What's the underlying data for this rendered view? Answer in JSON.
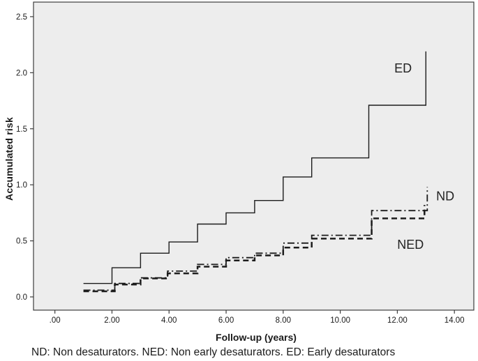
{
  "figure": {
    "caption": "ND: Non desaturators. NED: Non early desaturators. ED: Early desaturators"
  },
  "chart_data": {
    "type": "line",
    "variant": "step",
    "title": "",
    "xlabel": "Follow-up (years)",
    "ylabel": "Accumulated risk",
    "xlim": [
      -0.75,
      14.68
    ],
    "ylim": [
      -0.118,
      2.63
    ],
    "grid": false,
    "legend_position": "in-plot labels",
    "plot_background": "#ededed",
    "frame_color": "#3d3d3d",
    "line_color": "#1c1c1c",
    "xticks": {
      "values": [
        0,
        2,
        4,
        6,
        8,
        10,
        12,
        14
      ],
      "labels": [
        ".00",
        "2.00",
        "4.00",
        "6.00",
        "8.00",
        "10.00",
        "12.00",
        "14.00"
      ]
    },
    "yticks": {
      "values": [
        0.0,
        0.5,
        1.0,
        1.5,
        2.0,
        2.5
      ],
      "labels": [
        "0.0",
        "0.5",
        "1.0",
        "1.5",
        "2.0",
        "2.5"
      ]
    },
    "series": [
      {
        "name": "ED",
        "style": "solid",
        "width": 1.4,
        "points": [
          [
            1.0,
            0.12
          ],
          [
            2.0,
            0.12
          ],
          [
            2.0,
            0.26
          ],
          [
            3.0,
            0.26
          ],
          [
            3.0,
            0.39
          ],
          [
            4.0,
            0.39
          ],
          [
            4.0,
            0.49
          ],
          [
            5.0,
            0.49
          ],
          [
            5.0,
            0.65
          ],
          [
            6.0,
            0.65
          ],
          [
            6.0,
            0.75
          ],
          [
            7.0,
            0.75
          ],
          [
            7.0,
            0.86
          ],
          [
            8.0,
            0.86
          ],
          [
            8.0,
            1.07
          ],
          [
            9.0,
            1.07
          ],
          [
            9.0,
            1.24
          ],
          [
            11.0,
            1.24
          ],
          [
            11.0,
            1.71
          ],
          [
            13.0,
            1.71
          ],
          [
            13.0,
            2.19
          ]
        ]
      },
      {
        "name": "ND",
        "style": "dashdot",
        "width": 1.8,
        "points": [
          [
            1.0,
            0.06
          ],
          [
            2.1,
            0.06
          ],
          [
            2.1,
            0.12
          ],
          [
            3.0,
            0.12
          ],
          [
            3.0,
            0.17
          ],
          [
            3.95,
            0.17
          ],
          [
            3.95,
            0.23
          ],
          [
            5.0,
            0.23
          ],
          [
            5.0,
            0.29
          ],
          [
            6.0,
            0.29
          ],
          [
            6.0,
            0.35
          ],
          [
            7.0,
            0.35
          ],
          [
            7.0,
            0.39
          ],
          [
            8.0,
            0.39
          ],
          [
            8.0,
            0.48
          ],
          [
            9.0,
            0.48
          ],
          [
            9.0,
            0.55
          ],
          [
            11.1,
            0.55
          ],
          [
            11.1,
            0.77
          ],
          [
            13.05,
            0.77
          ],
          [
            13.05,
            0.98
          ]
        ]
      },
      {
        "name": "NED",
        "style": "dashed",
        "width": 2.5,
        "points": [
          [
            1.0,
            0.05
          ],
          [
            2.1,
            0.05
          ],
          [
            2.1,
            0.11
          ],
          [
            3.0,
            0.11
          ],
          [
            3.0,
            0.165
          ],
          [
            3.95,
            0.165
          ],
          [
            3.95,
            0.21
          ],
          [
            5.0,
            0.21
          ],
          [
            5.0,
            0.27
          ],
          [
            6.0,
            0.27
          ],
          [
            6.0,
            0.325
          ],
          [
            7.0,
            0.325
          ],
          [
            7.0,
            0.37
          ],
          [
            8.0,
            0.37
          ],
          [
            8.0,
            0.44
          ],
          [
            9.0,
            0.44
          ],
          [
            9.0,
            0.52
          ],
          [
            11.1,
            0.52
          ],
          [
            11.1,
            0.7
          ],
          [
            12.95,
            0.7
          ],
          [
            12.95,
            0.82
          ]
        ]
      }
    ],
    "annotations": [
      {
        "text": "ED",
        "x": 12.2,
        "y": 2.04
      },
      {
        "text": "ND",
        "x": 13.68,
        "y": 0.9
      },
      {
        "text": "NED",
        "x": 12.46,
        "y": 0.465
      }
    ]
  }
}
